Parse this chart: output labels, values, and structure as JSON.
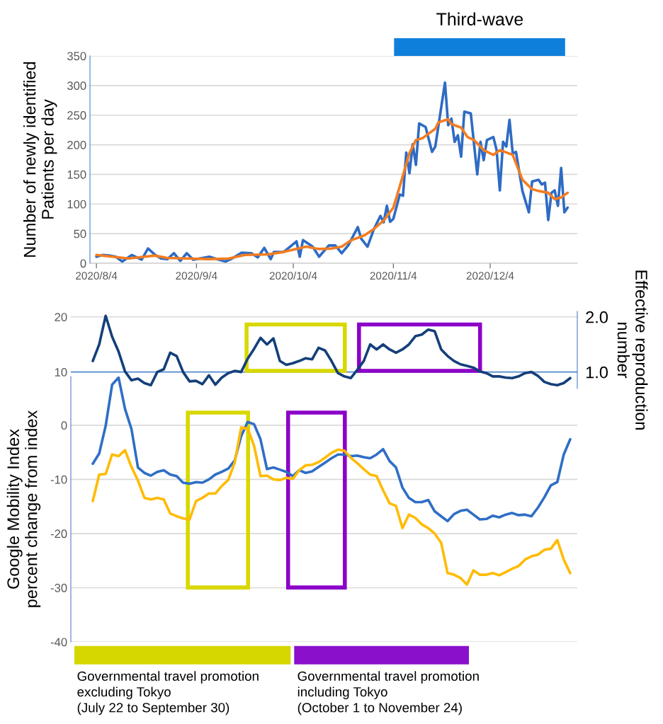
{
  "chart_data": [
    {
      "type": "line",
      "ylabel": "Number of newly identified\nPatients per day",
      "annotations": [
        "Third-wave"
      ],
      "xlim": [
        "2020-08-02",
        "2020-12-31"
      ],
      "xticks": [
        {
          "value": "2020-08-04",
          "label": "2020/8/4"
        },
        {
          "value": "2020-09-04",
          "label": "2020/9/4"
        },
        {
          "value": "2020-10-04",
          "label": "2020/10/4"
        },
        {
          "value": "2020-11-04",
          "label": "2020/11/4"
        },
        {
          "value": "2020-12-04",
          "label": "2020/12/4"
        }
      ],
      "ylim": [
        0,
        350
      ],
      "yticks": [
        0,
        50,
        100,
        150,
        200,
        250,
        300,
        350
      ],
      "grid": "y",
      "series": [
        {
          "color": "#2e6bc4",
          "x": [
            "2020-08-04",
            "2020-08-06",
            "2020-08-08",
            "2020-08-10",
            "2020-08-12",
            "2020-08-15",
            "2020-08-18",
            "2020-08-20",
            "2020-08-22",
            "2020-08-24",
            "2020-08-26",
            "2020-08-28",
            "2020-08-30",
            "2020-09-01",
            "2020-09-03",
            "2020-09-05",
            "2020-09-08",
            "2020-09-11",
            "2020-09-13",
            "2020-09-15",
            "2020-09-18",
            "2020-09-21",
            "2020-09-23",
            "2020-09-25",
            "2020-09-27",
            "2020-09-28",
            "2020-10-01",
            "2020-10-05",
            "2020-10-06",
            "2020-10-07",
            "2020-10-10",
            "2020-10-12",
            "2020-10-15",
            "2020-10-17",
            "2020-10-19",
            "2020-10-21",
            "2020-10-24",
            "2020-10-25",
            "2020-10-27",
            "2020-10-29",
            "2020-10-31",
            "2020-11-01",
            "2020-11-02",
            "2020-11-03",
            "2020-11-04",
            "2020-11-06",
            "2020-11-07",
            "2020-11-08",
            "2020-11-09",
            "2020-11-10",
            "2020-11-11",
            "2020-11-12",
            "2020-11-14",
            "2020-11-16",
            "2020-11-17",
            "2020-11-20",
            "2020-11-21",
            "2020-11-22",
            "2020-11-23",
            "2020-11-24",
            "2020-11-25",
            "2020-11-26",
            "2020-11-28",
            "2020-11-30",
            "2020-12-01",
            "2020-12-02",
            "2020-12-03",
            "2020-12-05",
            "2020-12-06",
            "2020-12-07",
            "2020-12-08",
            "2020-12-09",
            "2020-12-10",
            "2020-12-11",
            "2020-12-12",
            "2020-12-14",
            "2020-12-16",
            "2020-12-17",
            "2020-12-19",
            "2020-12-20",
            "2020-12-21",
            "2020-12-22",
            "2020-12-23",
            "2020-12-24",
            "2020-12-25",
            "2020-12-26",
            "2020-12-27",
            "2020-12-28"
          ],
          "values": [
            11,
            14,
            13,
            11,
            3,
            14,
            6,
            25,
            15,
            8,
            7,
            17,
            4,
            17,
            6,
            8,
            11,
            6,
            3,
            8,
            18,
            17,
            10,
            26,
            7,
            19,
            19,
            37,
            11,
            39,
            28,
            11,
            30,
            30,
            17,
            30,
            61,
            42,
            28,
            58,
            80,
            69,
            97,
            70,
            75,
            116,
            114,
            187,
            152,
            201,
            166,
            236,
            230,
            188,
            197,
            305,
            233,
            244,
            205,
            216,
            180,
            256,
            253,
            150,
            205,
            174,
            208,
            213,
            191,
            123,
            205,
            197,
            242,
            185,
            188,
            122,
            86,
            138,
            141,
            133,
            136,
            73,
            119,
            123,
            97,
            161,
            86,
            94
          ]
        },
        {
          "color": "#f47c20",
          "x": [
            "2020-08-04",
            "2020-08-09",
            "2020-08-14",
            "2020-08-19",
            "2020-08-22",
            "2020-08-26",
            "2020-09-01",
            "2020-09-08",
            "2020-09-14",
            "2020-09-19",
            "2020-09-26",
            "2020-10-01",
            "2020-10-08",
            "2020-10-12",
            "2020-10-16",
            "2020-10-19",
            "2020-10-22",
            "2020-10-26",
            "2020-10-29",
            "2020-11-01",
            "2020-11-04",
            "2020-11-06",
            "2020-11-09",
            "2020-11-11",
            "2020-11-13",
            "2020-11-15",
            "2020-11-17",
            "2020-11-18",
            "2020-11-21",
            "2020-11-22",
            "2020-11-25",
            "2020-11-27",
            "2020-11-29",
            "2020-12-02",
            "2020-12-05",
            "2020-12-07",
            "2020-12-11",
            "2020-12-14",
            "2020-12-17",
            "2020-12-19",
            "2020-12-22",
            "2020-12-24",
            "2020-12-26",
            "2020-12-28"
          ],
          "values": [
            14,
            11,
            8,
            11,
            13,
            9,
            8,
            7,
            8,
            14,
            15,
            19,
            28,
            24,
            25,
            28,
            39,
            47,
            58,
            72,
            94,
            130,
            186,
            208,
            211,
            219,
            227,
            238,
            243,
            235,
            229,
            213,
            208,
            191,
            183,
            191,
            183,
            141,
            125,
            122,
            119,
            108,
            111,
            119
          ]
        }
      ]
    },
    {
      "type": "line",
      "y2label": "Effective reproduction\nnumber",
      "tick_labels": "y",
      "categories": [
        null,
        null,
        null,
        null,
        null,
        null,
        null,
        null,
        null,
        null,
        null,
        null,
        null,
        null,
        null,
        null,
        null,
        null,
        null,
        null,
        null,
        null,
        null,
        null,
        null,
        null,
        null,
        null,
        null,
        null,
        null,
        null,
        null,
        null,
        null,
        null,
        null,
        null,
        null,
        null,
        null,
        null,
        null,
        null,
        null,
        null,
        null,
        null,
        null,
        null,
        null,
        null,
        null,
        null,
        null,
        null,
        null,
        null,
        null,
        null,
        null,
        null,
        null,
        null,
        null,
        null,
        null,
        null,
        null,
        null,
        null,
        null,
        null,
        null,
        null
      ],
      "ylim": [
        7,
        21
      ],
      "yticks": [
        10,
        20
      ],
      "y2lim": [
        0.7,
        2.1
      ],
      "y2ticks": [
        {
          "value": 1,
          "label": "1.0"
        },
        {
          "value": 2,
          "label": "2.0"
        }
      ],
      "grid": "y",
      "ref_lines": [
        {
          "axis": "y",
          "value": 10,
          "color": "#5b8fd6"
        }
      ],
      "series": [
        {
          "color": "#143f7a",
          "values": [
            12.0,
            15.0,
            20.2,
            16.4,
            13.7,
            10.1,
            8.5,
            8.8,
            8.0,
            7.6,
            10.0,
            10.5,
            13.5,
            12.9,
            10.0,
            8.3,
            8.4,
            7.8,
            9.4,
            7.7,
            9.0,
            9.8,
            10.2,
            10.0,
            12.4,
            14.2,
            16.2,
            15.0,
            16.1,
            12.0,
            11.3,
            11.6,
            12.0,
            12.5,
            12.3,
            14.4,
            13.9,
            12.0,
            9.8,
            9.2,
            8.9,
            10.4,
            12.0,
            15.0,
            14.1,
            15.0,
            14.1,
            13.5,
            14.1,
            15.0,
            16.5,
            16.8,
            17.7,
            17.4,
            14.1,
            12.9,
            12.0,
            11.4,
            11.1,
            10.8,
            10.1,
            9.8,
            9.2,
            9.2,
            9.0,
            8.9,
            9.2,
            9.8,
            10.0,
            9.3,
            8.2,
            7.8,
            7.6,
            8.0,
            8.9
          ]
        }
      ]
    },
    {
      "type": "line",
      "ylabel": "Google Mobility Index\npercent change from index",
      "tick_labels": "y",
      "annotations": [
        "Governmental travel promotion\nexcluding Tokyo\n(July 22 to September 30)",
        "Governmental travel promotion\nincluding Tokyo\n(October 1 to November 24)"
      ],
      "categories": [
        null,
        null,
        null,
        null,
        null,
        null,
        null,
        null,
        null,
        null,
        null,
        null,
        null,
        null,
        null,
        null,
        null,
        null,
        null,
        null,
        null,
        null,
        null,
        null,
        null,
        null,
        null,
        null,
        null,
        null,
        null,
        null,
        null,
        null,
        null,
        null,
        null,
        null,
        null,
        null,
        null,
        null,
        null,
        null,
        null,
        null,
        null,
        null,
        null,
        null,
        null,
        null,
        null,
        null,
        null,
        null,
        null,
        null,
        null,
        null,
        null,
        null,
        null,
        null,
        null,
        null,
        null,
        null,
        null,
        null,
        null,
        null,
        null,
        null,
        null
      ],
      "ylim": [
        -40,
        9
      ],
      "yticks": [
        -40,
        -30,
        -20,
        -10,
        0
      ],
      "grid": "y",
      "series": [
        {
          "color": "#2f6ec6",
          "values": [
            -7.1,
            -5.2,
            -0.1,
            7.5,
            8.8,
            3.0,
            -0.7,
            -7.8,
            -8.8,
            -9.3,
            -8.6,
            -8.3,
            -9.1,
            -9.4,
            -10.6,
            -10.8,
            -10.5,
            -10.6,
            -10.0,
            -9.1,
            -8.6,
            -8.0,
            -6.5,
            -2.0,
            0.6,
            0.2,
            -2.6,
            -8.1,
            -7.8,
            -8.2,
            -8.6,
            -9.4,
            -8.3,
            -8.8,
            -8.5,
            -7.7,
            -6.9,
            -6.1,
            -5.4,
            -5.4,
            -5.7,
            -5.6,
            -5.9,
            -6.1,
            -5.4,
            -4.4,
            -6.6,
            -7.8,
            -11.5,
            -13.4,
            -14.2,
            -14.2,
            -13.8,
            -15.9,
            -16.8,
            -17.7,
            -16.4,
            -15.8,
            -15.6,
            -16.5,
            -17.4,
            -17.3,
            -16.7,
            -17.0,
            -16.5,
            -16.2,
            -16.6,
            -16.5,
            -16.8,
            -15.2,
            -13.3,
            -11.1,
            -10.5,
            -5.4,
            -2.6
          ]
        },
        {
          "color": "#ffbb00",
          "values": [
            -14.0,
            -9.1,
            -9.0,
            -5.4,
            -5.7,
            -4.6,
            -7.7,
            -10.2,
            -13.4,
            -13.7,
            -13.4,
            -13.7,
            -16.3,
            -16.8,
            -17.2,
            -17.4,
            -14.0,
            -13.4,
            -12.6,
            -12.6,
            -11.2,
            -10.1,
            -6.9,
            -0.4,
            -0.6,
            -3.8,
            -9.4,
            -9.3,
            -10.0,
            -10.1,
            -9.7,
            -9.9,
            -8.3,
            -7.4,
            -7.3,
            -6.8,
            -6.0,
            -5.1,
            -4.5,
            -4.7,
            -6.0,
            -7.0,
            -8.1,
            -9.1,
            -9.4,
            -12.0,
            -14.4,
            -14.9,
            -19.0,
            -16.5,
            -17.1,
            -18.3,
            -19.0,
            -20.0,
            -21.7,
            -27.3,
            -27.6,
            -28.2,
            -29.4,
            -26.8,
            -27.6,
            -27.6,
            -27.3,
            -27.7,
            -27.1,
            -26.5,
            -26.0,
            -24.8,
            -24.2,
            -23.9,
            -23.0,
            -22.8,
            -21.2,
            -24.8,
            -27.3
          ]
        }
      ]
    }
  ]
}
